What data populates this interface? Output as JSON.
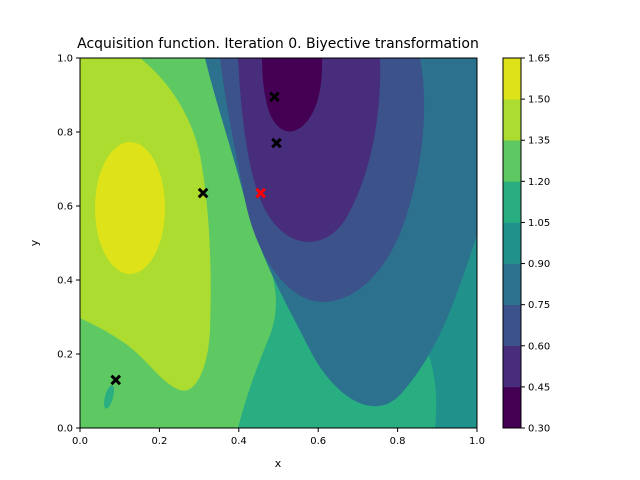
{
  "chart_data": {
    "type": "contourf",
    "title": "Acquisition function. Iteration 0. Biyective transformation",
    "xlabel": "x",
    "ylabel": "y",
    "xlim": [
      0,
      1
    ],
    "ylim": [
      0,
      1
    ],
    "x_ticks": [
      "0.0",
      "0.2",
      "0.4",
      "0.6",
      "0.8",
      "1.0"
    ],
    "y_ticks": [
      "0.0",
      "0.2",
      "0.4",
      "0.6",
      "0.8",
      "1.0"
    ],
    "colorbar": {
      "levels": [
        0.3,
        0.45,
        0.6,
        0.75,
        0.9,
        1.05,
        1.2,
        1.35,
        1.5,
        1.65
      ],
      "tick_labels": [
        "0.30",
        "0.45",
        "0.60",
        "0.75",
        "0.90",
        "1.05",
        "1.20",
        "1.35",
        "1.50",
        "1.65"
      ],
      "colors": [
        "#440154",
        "#472d7b",
        "#3b528b",
        "#2c728e",
        "#21918c",
        "#28ae80",
        "#5ec962",
        "#addc30",
        "#dde318"
      ]
    },
    "observed_points": [
      {
        "x": 0.09,
        "y": 0.13
      },
      {
        "x": 0.31,
        "y": 0.635
      },
      {
        "x": 0.49,
        "y": 0.895
      },
      {
        "x": 0.495,
        "y": 0.77
      }
    ],
    "next_point": {
      "x": 0.455,
      "y": 0.635
    },
    "colors": {
      "observed": "#000000",
      "next": "#ff0000"
    }
  }
}
